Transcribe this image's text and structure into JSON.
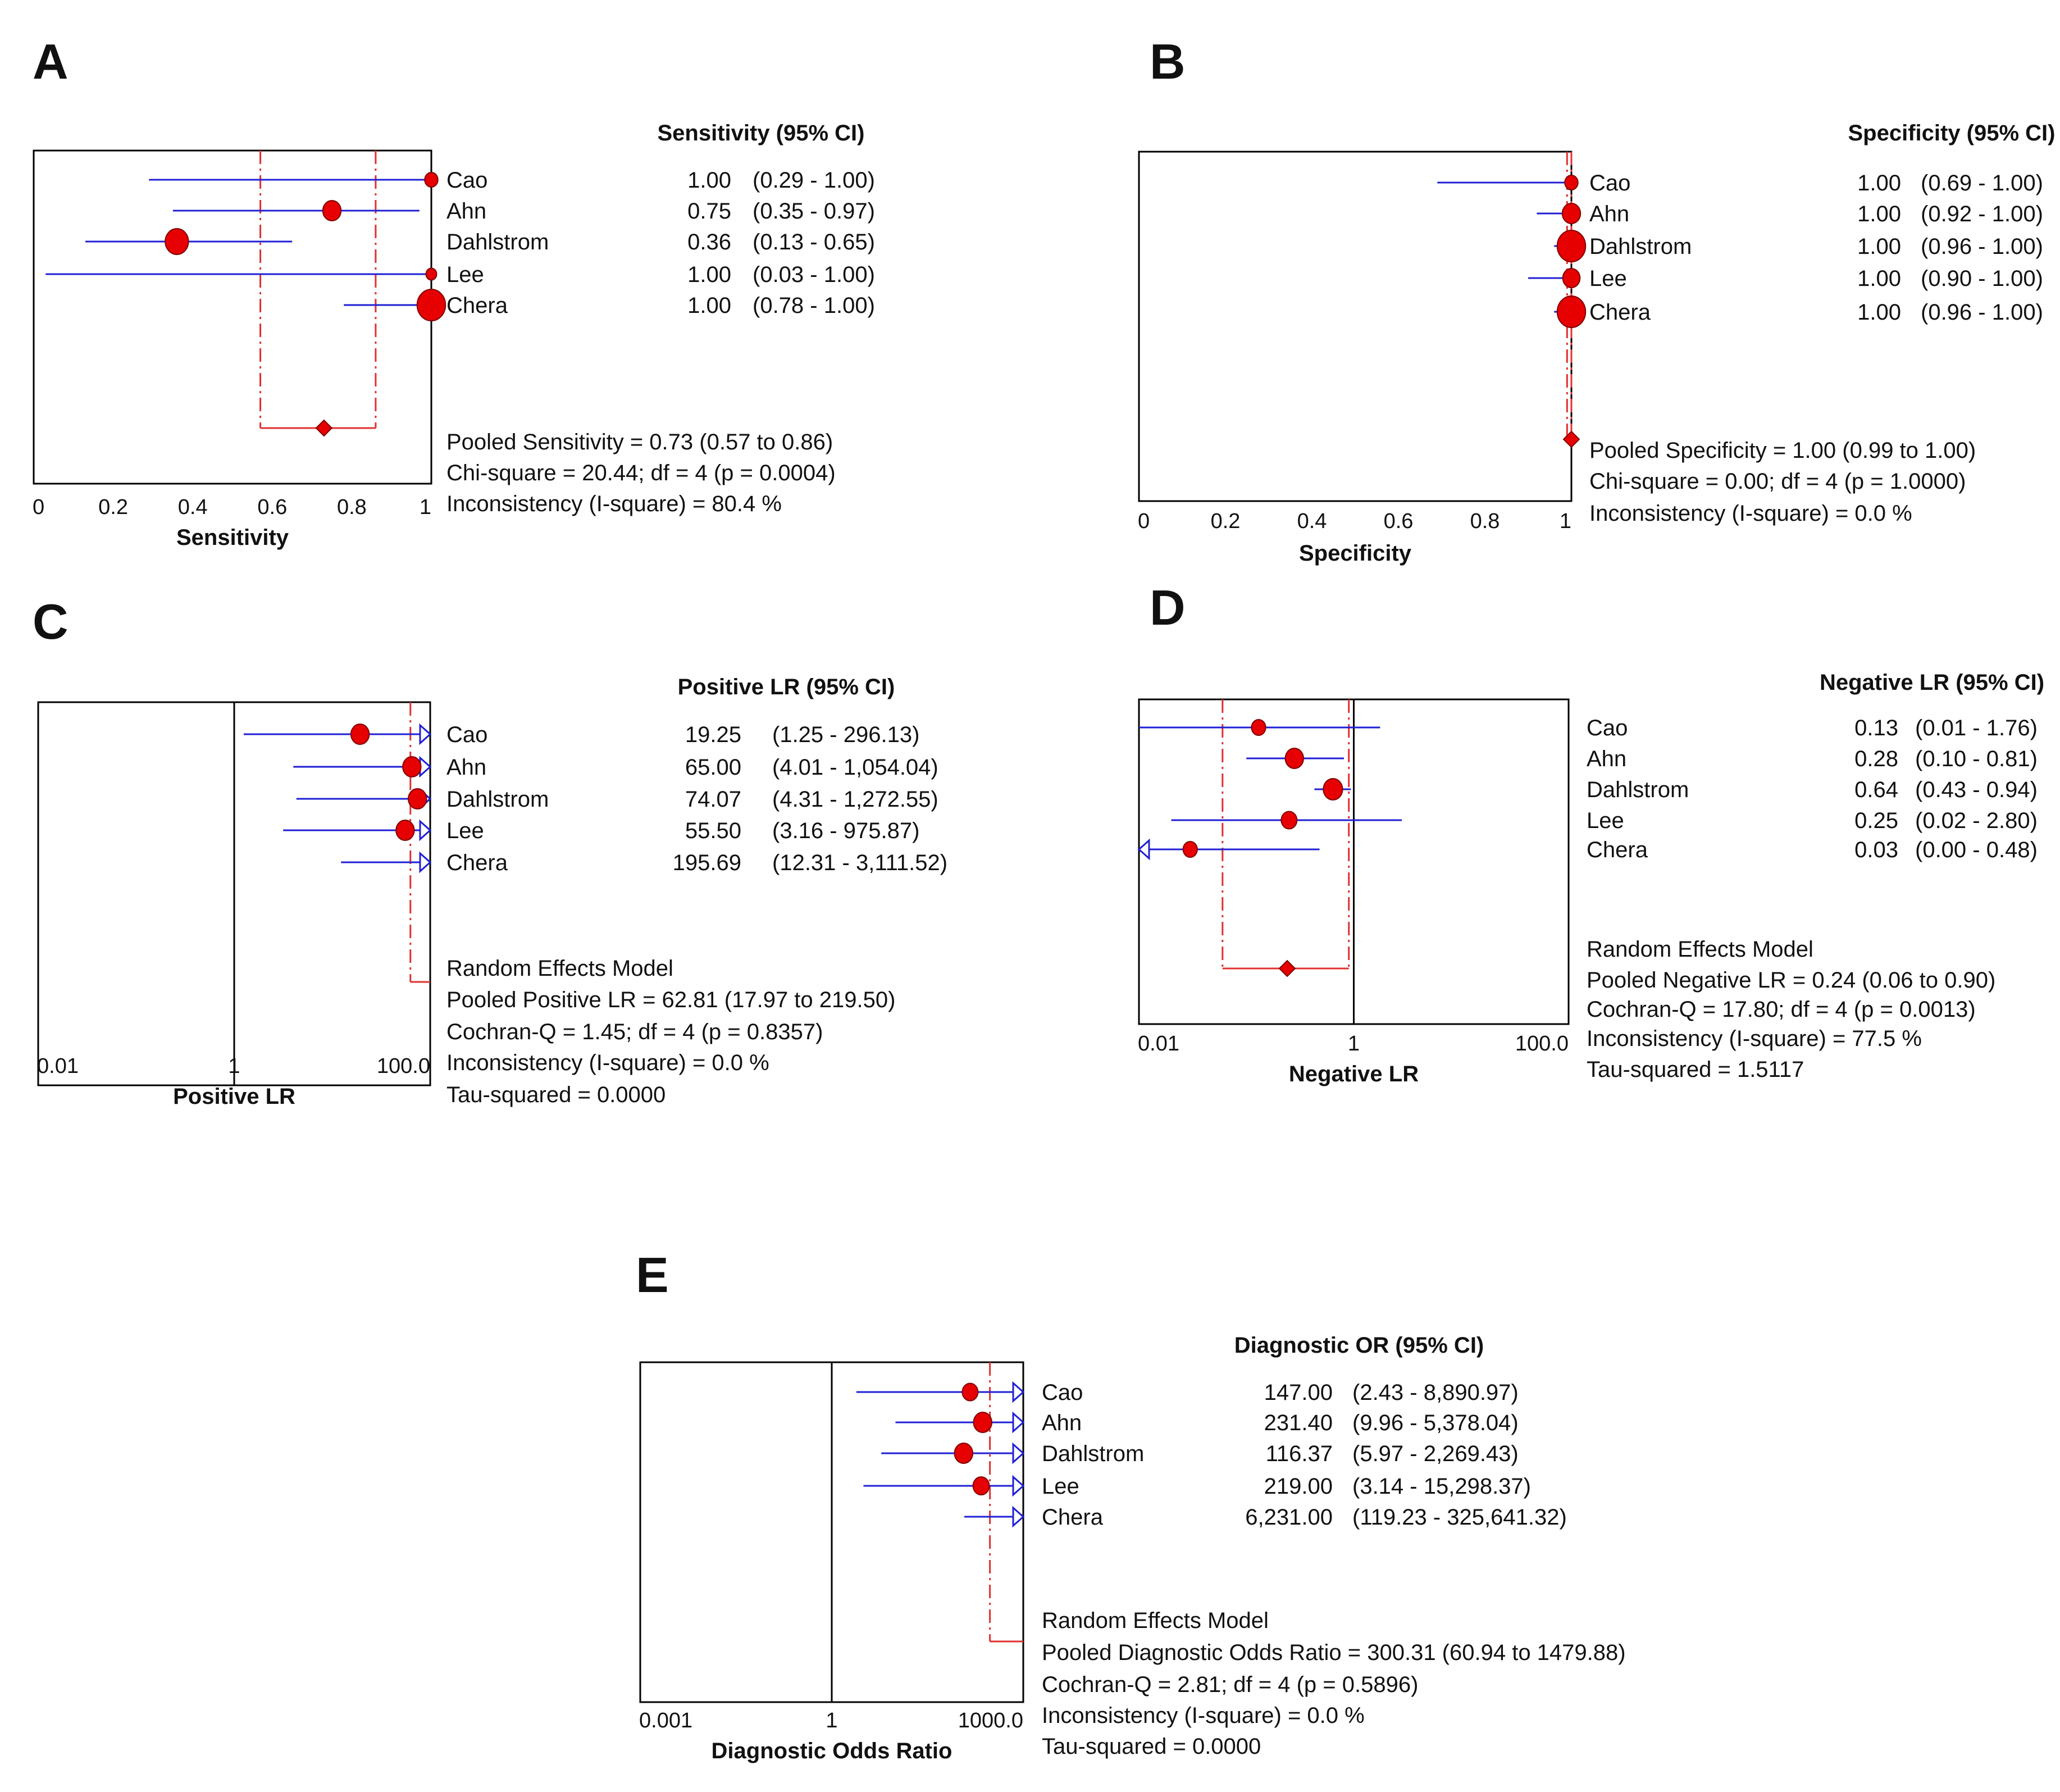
{
  "colors": {
    "ci_line": "#1f1fd6",
    "marker_fill": "#e60000",
    "marker_stroke": "#800000",
    "pooled_line": "#e03030",
    "frame": "#000000"
  },
  "chart_data": [
    {
      "panel": "A",
      "type": "forest",
      "scale": "linear",
      "xlim": [
        0,
        1
      ],
      "xticks": [
        "0",
        "0.2",
        "0.4",
        "0.6",
        "0.8",
        "1"
      ],
      "xlabel": "Sensitivity",
      "header": "Sensitivity (95% CI)",
      "studies": [
        {
          "name": "Cao",
          "est": 1.0,
          "lo": 0.29,
          "hi": 1.0,
          "weight": 1,
          "est_text": "1.00",
          "ci_text": "(0.29 - 1.00)"
        },
        {
          "name": "Ahn",
          "est": 0.75,
          "lo": 0.35,
          "hi": 0.97,
          "weight": 2,
          "est_text": "0.75",
          "ci_text": "(0.35 - 0.97)"
        },
        {
          "name": "Dahlstrom",
          "est": 0.36,
          "lo": 0.13,
          "hi": 0.65,
          "weight": 3,
          "est_text": "0.36",
          "ci_text": "(0.13 - 0.65)"
        },
        {
          "name": "Lee",
          "est": 1.0,
          "lo": 0.03,
          "hi": 1.0,
          "weight": 0.5,
          "est_text": "1.00",
          "ci_text": "(0.03 - 1.00)"
        },
        {
          "name": "Chera",
          "est": 1.0,
          "lo": 0.78,
          "hi": 1.0,
          "weight": 4,
          "est_text": "1.00",
          "ci_text": "(0.78 - 1.00)"
        }
      ],
      "pooled": {
        "est": 0.73,
        "lo": 0.57,
        "hi": 0.86
      },
      "ref_line": "dashed",
      "summary": [
        "Pooled Sensitivity = 0.73 (0.57 to 0.86)",
        "Chi-square = 20.44; df =  4 (p = 0.0004)",
        "Inconsistency (I-square) = 80.4 %"
      ]
    },
    {
      "panel": "B",
      "type": "forest",
      "scale": "linear",
      "xlim": [
        0,
        1
      ],
      "xticks": [
        "0",
        "0.2",
        "0.4",
        "0.6",
        "0.8",
        "1"
      ],
      "xlabel": "Specificity",
      "header": "Specificity (95% CI)",
      "studies": [
        {
          "name": "Cao",
          "est": 1.0,
          "lo": 0.69,
          "hi": 1.0,
          "weight": 1,
          "est_text": "1.00",
          "ci_text": "(0.69 - 1.00)"
        },
        {
          "name": "Ahn",
          "est": 1.0,
          "lo": 0.92,
          "hi": 1.0,
          "weight": 2,
          "est_text": "1.00",
          "ci_text": "(0.92 - 1.00)"
        },
        {
          "name": "Dahlstrom",
          "est": 1.0,
          "lo": 0.96,
          "hi": 1.0,
          "weight": 4,
          "est_text": "1.00",
          "ci_text": "(0.96 - 1.00)"
        },
        {
          "name": "Lee",
          "est": 1.0,
          "lo": 0.9,
          "hi": 1.0,
          "weight": 1.8,
          "est_text": "1.00",
          "ci_text": "(0.90 - 1.00)"
        },
        {
          "name": "Chera",
          "est": 1.0,
          "lo": 0.96,
          "hi": 1.0,
          "weight": 4,
          "est_text": "1.00",
          "ci_text": "(0.96 - 1.00)"
        }
      ],
      "pooled": {
        "est": 1.0,
        "lo": 0.99,
        "hi": 1.0
      },
      "ref_line": "dashed",
      "summary": [
        "Pooled Specificity = 1.00 (0.99 to 1.00)",
        "Chi-square = 0.00; df =  4 (p = 1.0000)",
        "Inconsistency (I-square) = 0.0 %"
      ]
    },
    {
      "panel": "C",
      "type": "forest",
      "scale": "log",
      "xlim": [
        0.01,
        100
      ],
      "xticks": [
        "0.01",
        "1",
        "100.0"
      ],
      "null_value": 1,
      "xlabel": "Positive LR",
      "header": "Positive LR (95% CI)",
      "studies": [
        {
          "name": "Cao",
          "est": 19.25,
          "lo": 1.25,
          "hi": 296.13,
          "weight": 2,
          "est_text": "19.25",
          "ci_text": "(1.25 - 296.13)"
        },
        {
          "name": "Ahn",
          "est": 65.0,
          "lo": 4.01,
          "hi": 1054.04,
          "weight": 2,
          "est_text": "65.00",
          "ci_text": "(4.01 - 1,054.04)"
        },
        {
          "name": "Dahlstrom",
          "est": 74.07,
          "lo": 4.31,
          "hi": 1272.55,
          "weight": 2,
          "est_text": "74.07",
          "ci_text": "(4.31 - 1,272.55)"
        },
        {
          "name": "Lee",
          "est": 55.5,
          "lo": 3.16,
          "hi": 975.87,
          "weight": 2,
          "est_text": "55.50",
          "ci_text": "(3.16 - 975.87)"
        },
        {
          "name": "Chera",
          "est": 195.69,
          "lo": 12.31,
          "hi": 3111.52,
          "weight": 2,
          "est_text": "195.69",
          "ci_text": "(12.31 - 3,111.52)"
        }
      ],
      "pooled": {
        "est": 62.81,
        "lo": 17.97,
        "hi": 219.5
      },
      "ref_line": "open",
      "summary": [
        "Random Effects Model",
        "Pooled Positive LR = 62.81 (17.97 to 219.50)",
        "Cochran-Q = 1.45; df =  4 (p = 0.8357)",
        "Inconsistency (I-square) = 0.0 %",
        "Tau-squared = 0.0000"
      ]
    },
    {
      "panel": "D",
      "type": "forest",
      "scale": "log",
      "xlim": [
        0.01,
        100
      ],
      "xticks": [
        "0.01",
        "1",
        "100.0"
      ],
      "null_value": 1,
      "xlabel": "Negative LR",
      "header": "Negative LR (95% CI)",
      "studies": [
        {
          "name": "Cao",
          "est": 0.13,
          "lo": 0.01,
          "hi": 1.76,
          "weight": 1.2,
          "est_text": "0.13",
          "ci_text": "(0.01 - 1.76)"
        },
        {
          "name": "Ahn",
          "est": 0.28,
          "lo": 0.1,
          "hi": 0.81,
          "weight": 2,
          "est_text": "0.28",
          "ci_text": "(0.10 - 0.81)"
        },
        {
          "name": "Dahlstrom",
          "est": 0.64,
          "lo": 0.43,
          "hi": 0.94,
          "weight": 2.2,
          "est_text": "0.64",
          "ci_text": "(0.43 - 0.94)"
        },
        {
          "name": "Lee",
          "est": 0.25,
          "lo": 0.02,
          "hi": 2.8,
          "weight": 1.5,
          "est_text": "0.25",
          "ci_text": "(0.02 - 2.80)"
        },
        {
          "name": "Chera",
          "est": 0.03,
          "lo": 0.0,
          "hi": 0.48,
          "weight": 1.2,
          "est_text": "0.03",
          "ci_text": "(0.00 - 0.48)"
        }
      ],
      "pooled": {
        "est": 0.24,
        "lo": 0.06,
        "hi": 0.9
      },
      "ref_line": "dashed",
      "summary": [
        "Random Effects Model",
        "Pooled Negative LR = 0.24 (0.06 to 0.90)",
        "Cochran-Q = 17.80; df =  4 (p = 0.0013)",
        "Inconsistency (I-square) = 77.5 %",
        "Tau-squared = 1.5117"
      ]
    },
    {
      "panel": "E",
      "type": "forest",
      "scale": "log",
      "xlim": [
        0.001,
        1000
      ],
      "xticks": [
        "0.001",
        "1",
        "1000.0"
      ],
      "null_value": 1,
      "xlabel": "Diagnostic Odds Ratio",
      "header": "Diagnostic OR (95% CI)",
      "studies": [
        {
          "name": "Cao",
          "est": 147.0,
          "lo": 2.43,
          "hi": 8890.97,
          "weight": 1.5,
          "est_text": "147.00",
          "ci_text": "(2.43 - 8,890.97)"
        },
        {
          "name": "Ahn",
          "est": 231.4,
          "lo": 9.96,
          "hi": 5378.04,
          "weight": 2,
          "est_text": "231.40",
          "ci_text": "(9.96 - 5,378.04)"
        },
        {
          "name": "Dahlstrom",
          "est": 116.37,
          "lo": 5.97,
          "hi": 2269.43,
          "weight": 2,
          "est_text": "116.37",
          "ci_text": "(5.97 - 2,269.43)"
        },
        {
          "name": "Lee",
          "est": 219.0,
          "lo": 3.14,
          "hi": 15298.37,
          "weight": 1.6,
          "est_text": "219.00",
          "ci_text": "(3.14 - 15,298.37)"
        },
        {
          "name": "Chera",
          "est": 6231.0,
          "lo": 119.23,
          "hi": 325641.32,
          "weight": 2,
          "est_text": "6,231.00",
          "ci_text": "(119.23 - 325,641.32)"
        }
      ],
      "pooled": {
        "est": 300.31,
        "lo": 60.94,
        "hi": 1479.88
      },
      "ref_line": "open",
      "summary": [
        "Random Effects Model",
        "Pooled Diagnostic Odds Ratio = 300.31 (60.94 to 1479.88)",
        "Cochran-Q = 2.81; df =  4 (p = 0.5896)",
        "Inconsistency (I-square) = 0.0 %",
        "Tau-squared = 0.0000"
      ]
    }
  ]
}
